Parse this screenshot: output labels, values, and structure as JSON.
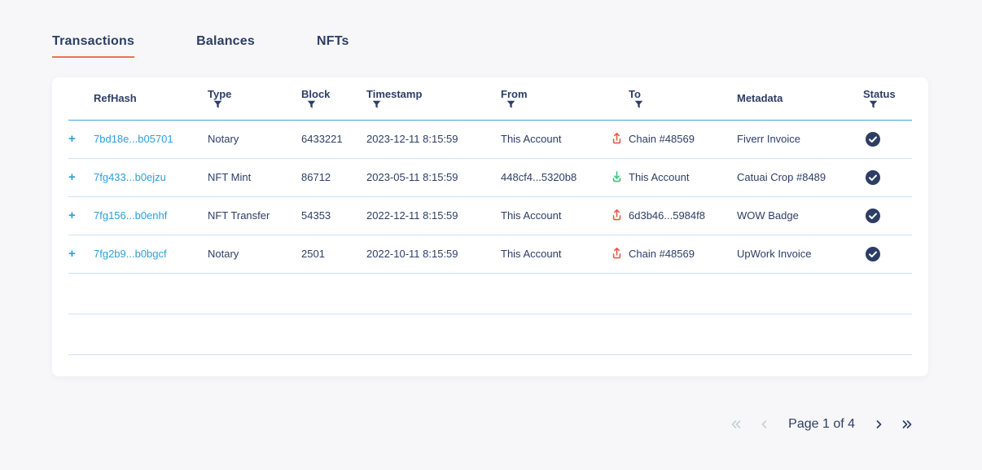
{
  "tabs": [
    {
      "label": "Transactions",
      "active": true
    },
    {
      "label": "Balances",
      "active": false
    },
    {
      "label": "NFTs",
      "active": false
    }
  ],
  "table": {
    "columns": [
      {
        "label": "RefHash",
        "filter": false
      },
      {
        "label": "Type",
        "filter": true
      },
      {
        "label": "Block",
        "filter": true
      },
      {
        "label": "Timestamp",
        "filter": true
      },
      {
        "label": "From",
        "filter": true
      },
      {
        "label": "To",
        "filter": true
      },
      {
        "label": "Metadata",
        "filter": false
      },
      {
        "label": "Status",
        "filter": true
      }
    ],
    "rows": [
      {
        "expander": "+",
        "refhash": "7bd18e...b05701",
        "type": "Notary",
        "block": "6433221",
        "timestamp": "2023-12-11 8:15:59",
        "from": "This Account",
        "direction": "out",
        "to": "Chain #48569",
        "metadata": "Fiverr Invoice",
        "status": "confirmed"
      },
      {
        "expander": "+",
        "refhash": "7fg433...b0ejzu",
        "type": "NFT Mint",
        "block": "86712",
        "timestamp": "2023-05-11 8:15:59",
        "from": "448cf4...5320b8",
        "direction": "in",
        "to": "This Account",
        "metadata": "Catuai Crop #8489",
        "status": "confirmed"
      },
      {
        "expander": "+",
        "refhash": "7fg156...b0enhf",
        "type": "NFT Transfer",
        "block": "54353",
        "timestamp": "2022-12-11 8:15:59",
        "from": "This Account",
        "direction": "out",
        "to": "6d3b46...5984f8",
        "metadata": "WOW Badge",
        "status": "confirmed"
      },
      {
        "expander": "+",
        "refhash": "7fg2b9...b0bgcf",
        "type": "Notary",
        "block": "2501",
        "timestamp": "2022-10-11 8:15:59",
        "from": "This Account",
        "direction": "out",
        "to": "Chain #48569",
        "metadata": "UpWork Invoice",
        "status": "confirmed"
      }
    ],
    "empty_row_count": 2
  },
  "pagination": {
    "label": "Page 1 of 4"
  },
  "colors": {
    "navy": "#2d3e66",
    "link_blue": "#2f9fd8",
    "accent_orange": "#e8764e",
    "out_red": "#e25c49",
    "in_green": "#3cc47c",
    "row_border": "#cbe4f8",
    "header_border": "#49a0dc",
    "disabled_gray": "#c9cdd6",
    "background": "#f7f7f9"
  }
}
